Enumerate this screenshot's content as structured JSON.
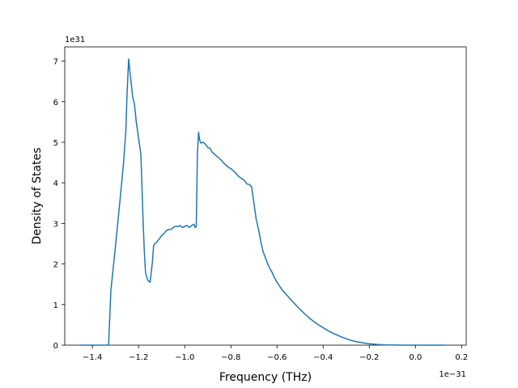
{
  "chart_data": {
    "type": "line",
    "xlabel": "Frequency (THz)",
    "ylabel": "Density of States",
    "x_offset_label": "1e−31",
    "y_offset_label": "1e31",
    "x_scale": "1e-31",
    "y_scale": "1e31",
    "xlim": [
      -1.52,
      0.22
    ],
    "ylim": [
      0,
      7.35
    ],
    "xticks": [
      -1.4,
      -1.2,
      -1.0,
      -0.8,
      -0.6,
      -0.4,
      -0.2,
      0.0,
      0.2
    ],
    "xtick_labels": [
      "−1.4",
      "−1.2",
      "−1.0",
      "−0.8",
      "−0.6",
      "−0.4",
      "−0.2",
      "0.0",
      "0.2"
    ],
    "yticks": [
      0,
      1,
      2,
      3,
      4,
      5,
      6,
      7
    ],
    "ytick_labels": [
      "0",
      "1",
      "2",
      "3",
      "4",
      "5",
      "6",
      "7"
    ],
    "grid": false,
    "line_color": "#1f77b4",
    "series": [
      {
        "x": [
          -1.45,
          -1.33,
          -1.32,
          -1.3,
          -1.28,
          -1.265,
          -1.255,
          -1.25,
          -1.243,
          -1.235,
          -1.225,
          -1.218,
          -1.21,
          -1.2,
          -1.19,
          -1.18,
          -1.175,
          -1.17,
          -1.165,
          -1.16,
          -1.15,
          -1.14,
          -1.135,
          -1.13,
          -1.125,
          -1.12,
          -1.11,
          -1.1,
          -1.09,
          -1.08,
          -1.07,
          -1.06,
          -1.05,
          -1.04,
          -1.03,
          -1.02,
          -1.01,
          -1.0,
          -0.99,
          -0.98,
          -0.97,
          -0.96,
          -0.955,
          -0.95,
          -0.945,
          -0.94,
          -0.935,
          -0.93,
          -0.925,
          -0.92,
          -0.91,
          -0.9,
          -0.89,
          -0.88,
          -0.87,
          -0.86,
          -0.85,
          -0.84,
          -0.83,
          -0.82,
          -0.81,
          -0.8,
          -0.79,
          -0.78,
          -0.77,
          -0.76,
          -0.75,
          -0.74,
          -0.73,
          -0.72,
          -0.71,
          -0.7,
          -0.69,
          -0.68,
          -0.675,
          -0.67,
          -0.665,
          -0.66,
          -0.65,
          -0.64,
          -0.63,
          -0.62,
          -0.61,
          -0.6,
          -0.58,
          -0.56,
          -0.54,
          -0.52,
          -0.5,
          -0.48,
          -0.46,
          -0.44,
          -0.42,
          -0.4,
          -0.38,
          -0.36,
          -0.34,
          -0.32,
          -0.3,
          -0.28,
          -0.26,
          -0.24,
          -0.22,
          -0.2,
          -0.18,
          -0.16,
          -0.14,
          -0.12,
          -0.1,
          -0.08,
          -0.06,
          -0.04,
          -0.02,
          0.0,
          0.02,
          0.04,
          0.06,
          0.08,
          0.1,
          0.13
        ],
        "y": [
          0.0,
          0.0,
          1.35,
          2.45,
          3.6,
          4.5,
          5.3,
          6.2,
          7.05,
          6.6,
          6.1,
          5.95,
          5.5,
          5.1,
          4.7,
          3.0,
          2.3,
          1.8,
          1.68,
          1.6,
          1.55,
          2.05,
          2.45,
          2.5,
          2.52,
          2.55,
          2.62,
          2.7,
          2.75,
          2.82,
          2.85,
          2.85,
          2.9,
          2.93,
          2.92,
          2.95,
          2.9,
          2.93,
          2.95,
          2.9,
          2.95,
          2.98,
          2.9,
          2.92,
          4.7,
          5.25,
          5.05,
          4.98,
          4.99,
          5.0,
          4.95,
          4.87,
          4.85,
          4.75,
          4.7,
          4.65,
          4.6,
          4.55,
          4.48,
          4.43,
          4.38,
          4.35,
          4.3,
          4.25,
          4.18,
          4.13,
          4.1,
          4.05,
          3.97,
          3.96,
          3.9,
          3.5,
          3.1,
          2.85,
          2.7,
          2.55,
          2.42,
          2.3,
          2.15,
          2.0,
          1.88,
          1.78,
          1.65,
          1.55,
          1.38,
          1.25,
          1.12,
          1.0,
          0.88,
          0.77,
          0.67,
          0.58,
          0.5,
          0.43,
          0.36,
          0.3,
          0.25,
          0.2,
          0.16,
          0.12,
          0.09,
          0.07,
          0.05,
          0.035,
          0.025,
          0.015,
          0.01,
          0.006,
          0.004,
          0.002,
          0.001,
          0.0,
          0.0,
          0.0,
          0.0,
          0.0,
          0.0,
          0.0,
          0.0,
          0.0
        ]
      }
    ]
  }
}
